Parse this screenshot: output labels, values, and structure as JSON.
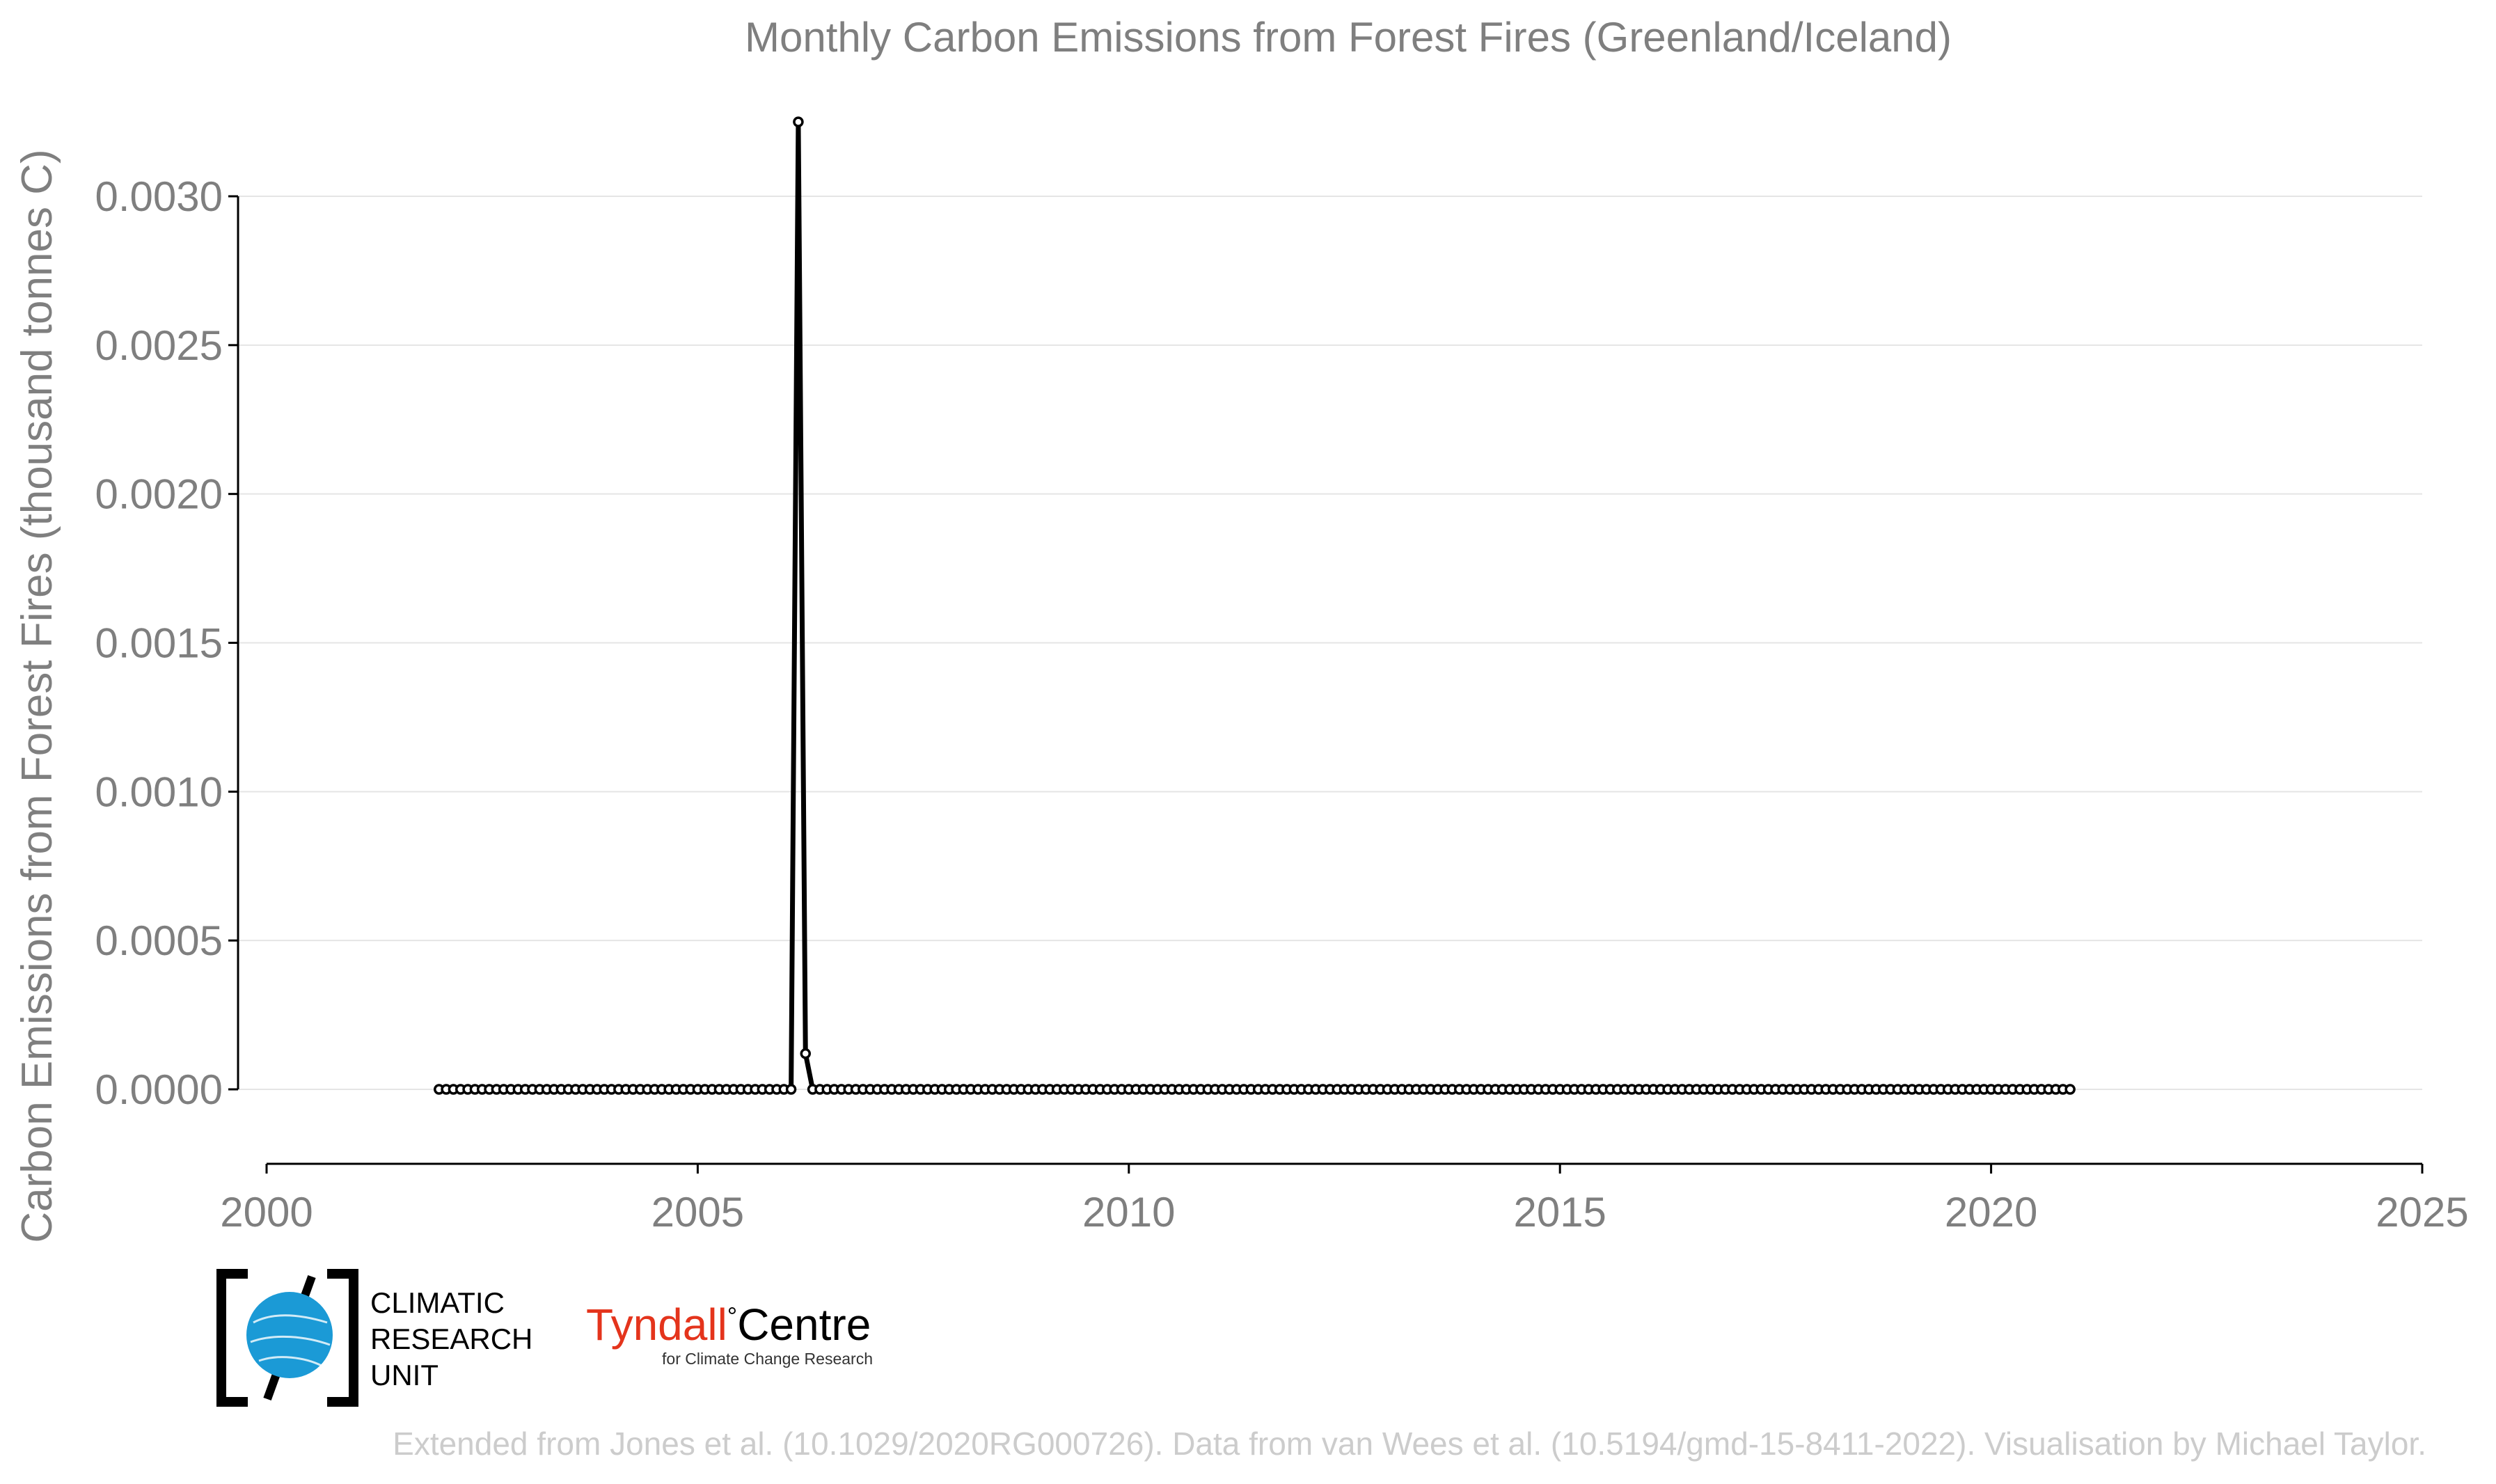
{
  "chart_data": {
    "type": "line",
    "title": "Monthly Carbon Emissions from Forest Fires (Greenland/Iceland)",
    "xlabel": "",
    "ylabel": "Carbon Emissions from Forest Fires (thousand tonnes C)",
    "xlim": [
      2000,
      2025
    ],
    "ylim": [
      -0.00026,
      0.0033
    ],
    "x_ticks": [
      "2000",
      "2005",
      "2010",
      "2015",
      "2020",
      "2025"
    ],
    "y_ticks": [
      "0.0000",
      "0.0005",
      "0.0010",
      "0.0015",
      "0.0020",
      "0.0025",
      "0.0030"
    ],
    "grid": "horizontal",
    "legend": "none",
    "series": [
      {
        "x_start": "2002-01",
        "x_end": "2020-12",
        "frequency": "monthly",
        "default_value": 0.0,
        "nonzero_points": [
          {
            "x": "2006-03",
            "y": 0.00325
          },
          {
            "x": "2006-04",
            "y": 0.00012
          }
        ],
        "color": "#000000"
      }
    ]
  },
  "credits": "Extended from Jones et al. (10.1029/2020RG000726). Data from van Wees et al. (10.5194/gmd-15-8411-2022). Visualisation by Michael Taylor.",
  "logos": {
    "cru_lines": [
      "CLIMATIC",
      "RESEARCH",
      "UNIT"
    ],
    "tyndall_name_left": "Tyndall",
    "tyndall_degree": "°",
    "tyndall_name_right": "Centre",
    "tyndall_subtitle": "for Climate Change Research"
  },
  "colors": {
    "line": "#000000",
    "grid": "#e5e5e5",
    "text": "#7f7f7f",
    "credits": "#cccccc",
    "cru_blue": "#1b9ad6",
    "tyndall_red": "#e4341c"
  }
}
